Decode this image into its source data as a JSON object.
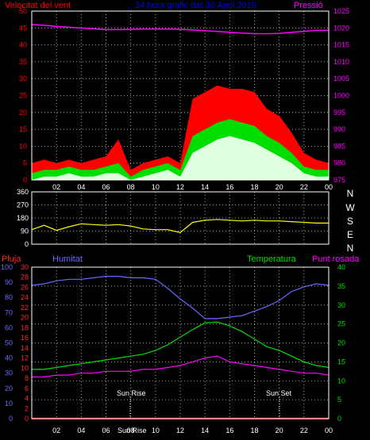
{
  "colors": {
    "wind_max": "#ff0000",
    "wind_avg": "#00dd00",
    "wind_min": "#e0ffe0",
    "pressure": "#ff00ff",
    "direction": "#ffff00",
    "rain_axis": "#ff2a2a",
    "humidity": "#6a6aff",
    "temperature": "#00dd00",
    "dewpoint": "#ff00ff",
    "rain": "#ff0000",
    "title": "#0000ff",
    "grid": "#cccccc",
    "frame": "#ffffff"
  },
  "header": {
    "wind_label": "Velocitat del vent",
    "title": "24 hora grafic dat 30 April 2019",
    "pressure_label": "Pressió"
  },
  "lower_header": {
    "rain_label": "Pluja",
    "humidity_label": "Humitat",
    "temperature_label": "Temperatura",
    "dewpoint_label": "Punt rosada"
  },
  "markers": {
    "sunrise": "Sun Rise",
    "sunset": "Sun Set",
    "sunrise_axis_label": "Sun Rise"
  },
  "x_ticks": [
    "02",
    "04",
    "06",
    "08",
    "10",
    "12",
    "14",
    "16",
    "18",
    "20",
    "22",
    "00"
  ],
  "chart_data": [
    {
      "type": "line",
      "panel": "wind_pressure",
      "x_hours": [
        0,
        1,
        2,
        3,
        4,
        5,
        6,
        7,
        8,
        9,
        10,
        11,
        12,
        13,
        14,
        15,
        16,
        17,
        18,
        19,
        20,
        21,
        22,
        23,
        24
      ],
      "left_axis": {
        "label": "Velocitat del vent",
        "ylim": [
          0,
          50
        ],
        "ticks": [
          0,
          5,
          10,
          15,
          20,
          25,
          30,
          35,
          40,
          45,
          50
        ]
      },
      "right_axis": {
        "label": "Pressió",
        "ylim": [
          975,
          1025
        ],
        "ticks": [
          975,
          980,
          985,
          990,
          995,
          1000,
          1005,
          1010,
          1015,
          1020,
          1025
        ]
      },
      "series": [
        {
          "name": "Pressió",
          "axis": "right",
          "values": [
            1021,
            1020.8,
            1020.5,
            1020.2,
            1020,
            1019.8,
            1019.5,
            1019.5,
            1019.6,
            1019.7,
            1019.7,
            1019.7,
            1019.6,
            1019.4,
            1019.2,
            1019,
            1018.7,
            1018.5,
            1018.3,
            1018.3,
            1018.4,
            1018.7,
            1019,
            1019.3,
            1019.3
          ]
        },
        {
          "axis": "left",
          "values": [
            5,
            6,
            5,
            6,
            5,
            6,
            7,
            12,
            3,
            5,
            6,
            7,
            5,
            24,
            26,
            28,
            27,
            27,
            26,
            21,
            19,
            14,
            8,
            6,
            5
          ]
        },
        {
          "axis": "left",
          "values": [
            2,
            3,
            3,
            4,
            3,
            3,
            4,
            5,
            1,
            3,
            4,
            5,
            3,
            13,
            15,
            17,
            18,
            17,
            16,
            13,
            11,
            8,
            4,
            3,
            3
          ]
        },
        {
          "axis": "left",
          "values": [
            0,
            1,
            1,
            2,
            1,
            1,
            2,
            2,
            0,
            1,
            2,
            3,
            1,
            8,
            10,
            12,
            13,
            12,
            11,
            9,
            7,
            5,
            2,
            1,
            1
          ]
        }
      ]
    },
    {
      "type": "line",
      "panel": "wind_direction",
      "x_hours": [
        0,
        1,
        2,
        3,
        4,
        5,
        6,
        7,
        8,
        9,
        10,
        11,
        12,
        13,
        14,
        15,
        16,
        17,
        18,
        19,
        20,
        21,
        22,
        23,
        24
      ],
      "left_axis": {
        "ylim": [
          0,
          360
        ],
        "ticks": [
          0,
          90,
          180,
          270,
          360
        ]
      },
      "right_axis_labels": [
        "N",
        "W",
        "S",
        "E",
        "N"
      ],
      "series": [
        {
          "axis": "left",
          "values": [
            100,
            130,
            95,
            120,
            140,
            135,
            130,
            135,
            125,
            105,
            100,
            100,
            80,
            150,
            165,
            170,
            165,
            160,
            165,
            160,
            160,
            155,
            150,
            145,
            145
          ]
        }
      ]
    },
    {
      "type": "line",
      "panel": "temp_humidity",
      "x_hours": [
        0,
        1,
        2,
        3,
        4,
        5,
        6,
        7,
        8,
        9,
        10,
        11,
        12,
        13,
        14,
        15,
        16,
        17,
        18,
        19,
        20,
        21,
        22,
        23,
        24
      ],
      "humidity_axis": {
        "label": "Humitat",
        "ylim": [
          0,
          100
        ],
        "ticks": [
          0,
          10,
          20,
          30,
          40,
          50,
          60,
          70,
          80,
          90,
          100
        ]
      },
      "rain_axis": {
        "label": "Pluja",
        "ylim": [
          0,
          30
        ],
        "ticks": [
          0,
          2,
          4,
          6,
          8,
          10,
          12,
          14,
          16,
          18,
          20,
          22,
          24,
          26,
          28,
          30
        ]
      },
      "temperature_axis": {
        "label": "Temperatura",
        "ylim": [
          0,
          40
        ],
        "ticks": [
          0,
          5,
          10,
          15,
          20,
          25,
          30,
          35,
          40
        ]
      },
      "series": [
        {
          "name": "Humitat",
          "axis": "humidity",
          "values": [
            88,
            89,
            91,
            92,
            92,
            93,
            94,
            94,
            93,
            93,
            92,
            86,
            79,
            73,
            66,
            66,
            67,
            68,
            71,
            74,
            78,
            84,
            87,
            89,
            88
          ]
        },
        {
          "name": "Temperatura",
          "axis": "temperature",
          "values": [
            13,
            13,
            13.5,
            14,
            14.5,
            15,
            15.5,
            16,
            16.5,
            17,
            18,
            19.5,
            21.5,
            23.5,
            25.3,
            25.5,
            24.5,
            23,
            21,
            19,
            18,
            16.5,
            15,
            14,
            13.5
          ]
        },
        {
          "name": "Punt rosada",
          "axis": "temperature",
          "values": [
            11,
            11,
            11.5,
            11.5,
            12,
            12,
            12.5,
            12.5,
            12.5,
            13,
            13,
            13.5,
            14,
            15,
            16,
            16.5,
            15,
            14.5,
            14,
            13.5,
            13,
            12.5,
            12,
            12,
            11.5
          ]
        },
        {
          "name": "Pluja",
          "axis": "rain",
          "values": [
            0,
            0,
            0,
            0,
            0,
            0,
            0,
            0,
            0,
            0,
            0,
            0,
            0,
            0,
            0,
            0,
            0,
            0,
            0,
            0,
            0,
            0,
            0,
            0,
            0
          ]
        }
      ]
    }
  ]
}
